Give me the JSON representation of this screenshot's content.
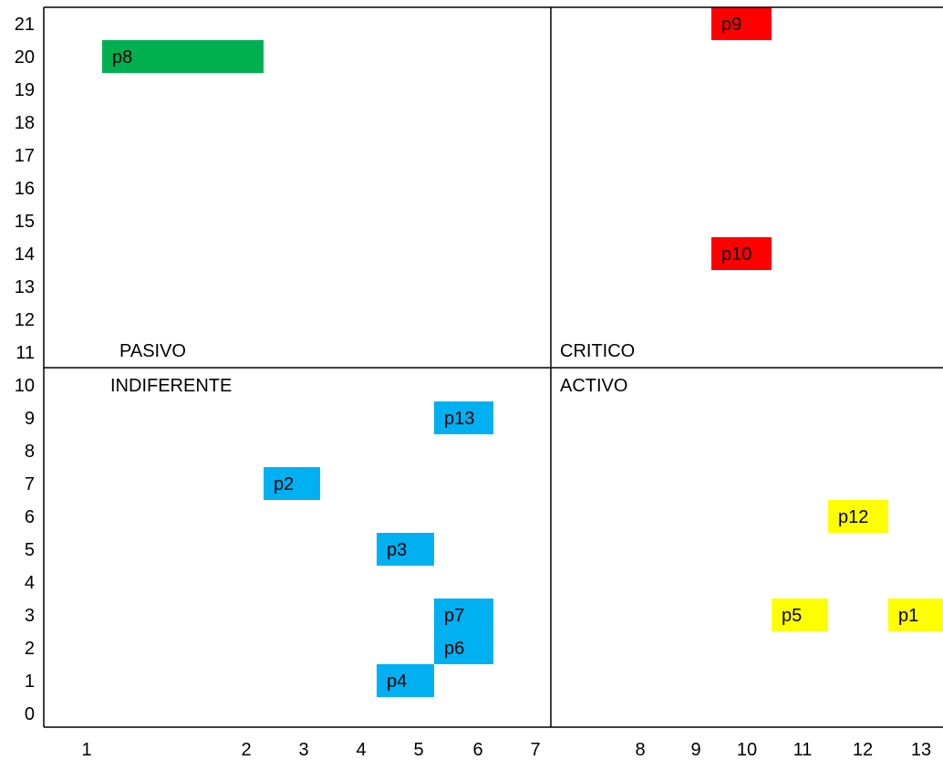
{
  "chart_data": {
    "type": "table",
    "y_tick_labels": [
      "21",
      "20",
      "19",
      "18",
      "17",
      "16",
      "15",
      "14",
      "13",
      "12",
      "11",
      "10",
      "9",
      "8",
      "7",
      "6",
      "5",
      "4",
      "3",
      "2",
      "1",
      "0"
    ],
    "x_tick_labels": [
      "1",
      "2",
      "3",
      "4",
      "5",
      "6",
      "7",
      "8",
      "9",
      "10",
      "11",
      "12",
      "13"
    ],
    "quadrants": [
      {
        "id": "pasivo",
        "label": "PASIVO"
      },
      {
        "id": "critico",
        "label": "CRITICO"
      },
      {
        "id": "indiferente",
        "label": "INDIFERENTE"
      },
      {
        "id": "activo",
        "label": "ACTIVO"
      }
    ],
    "points": [
      {
        "label": "p8",
        "color": "#00B050",
        "row": 20,
        "col_span": [
          1,
          2
        ]
      },
      {
        "label": "p9",
        "color": "#FF0000",
        "row": 21,
        "col_span": [
          9,
          10
        ]
      },
      {
        "label": "p10",
        "color": "#FF0000",
        "row": 14,
        "col_span": [
          9,
          10
        ]
      },
      {
        "label": "p13",
        "color": "#00B0F0",
        "row": 9,
        "col_span": [
          5,
          6
        ]
      },
      {
        "label": "p2",
        "color": "#00B0F0",
        "row": 7,
        "col_span": [
          2,
          3
        ]
      },
      {
        "label": "p3",
        "color": "#00B0F0",
        "row": 5,
        "col_span": [
          4,
          5
        ]
      },
      {
        "label": "p7",
        "color": "#00B0F0",
        "row": 3,
        "col_span": [
          5,
          6
        ]
      },
      {
        "label": "p6",
        "color": "#00B0F0",
        "row": 2,
        "col_span": [
          5,
          6
        ]
      },
      {
        "label": "p4",
        "color": "#00B0F0",
        "row": 1,
        "col_span": [
          4,
          5
        ]
      },
      {
        "label": "p12",
        "color": "#FFFF00",
        "row": 6,
        "col_span": [
          11,
          12
        ]
      },
      {
        "label": "p5",
        "color": "#FFFF00",
        "row": 3,
        "col_span": [
          10,
          11
        ]
      },
      {
        "label": "p1",
        "color": "#FFFF00",
        "row": 3,
        "col_span": [
          12,
          13
        ]
      }
    ]
  }
}
